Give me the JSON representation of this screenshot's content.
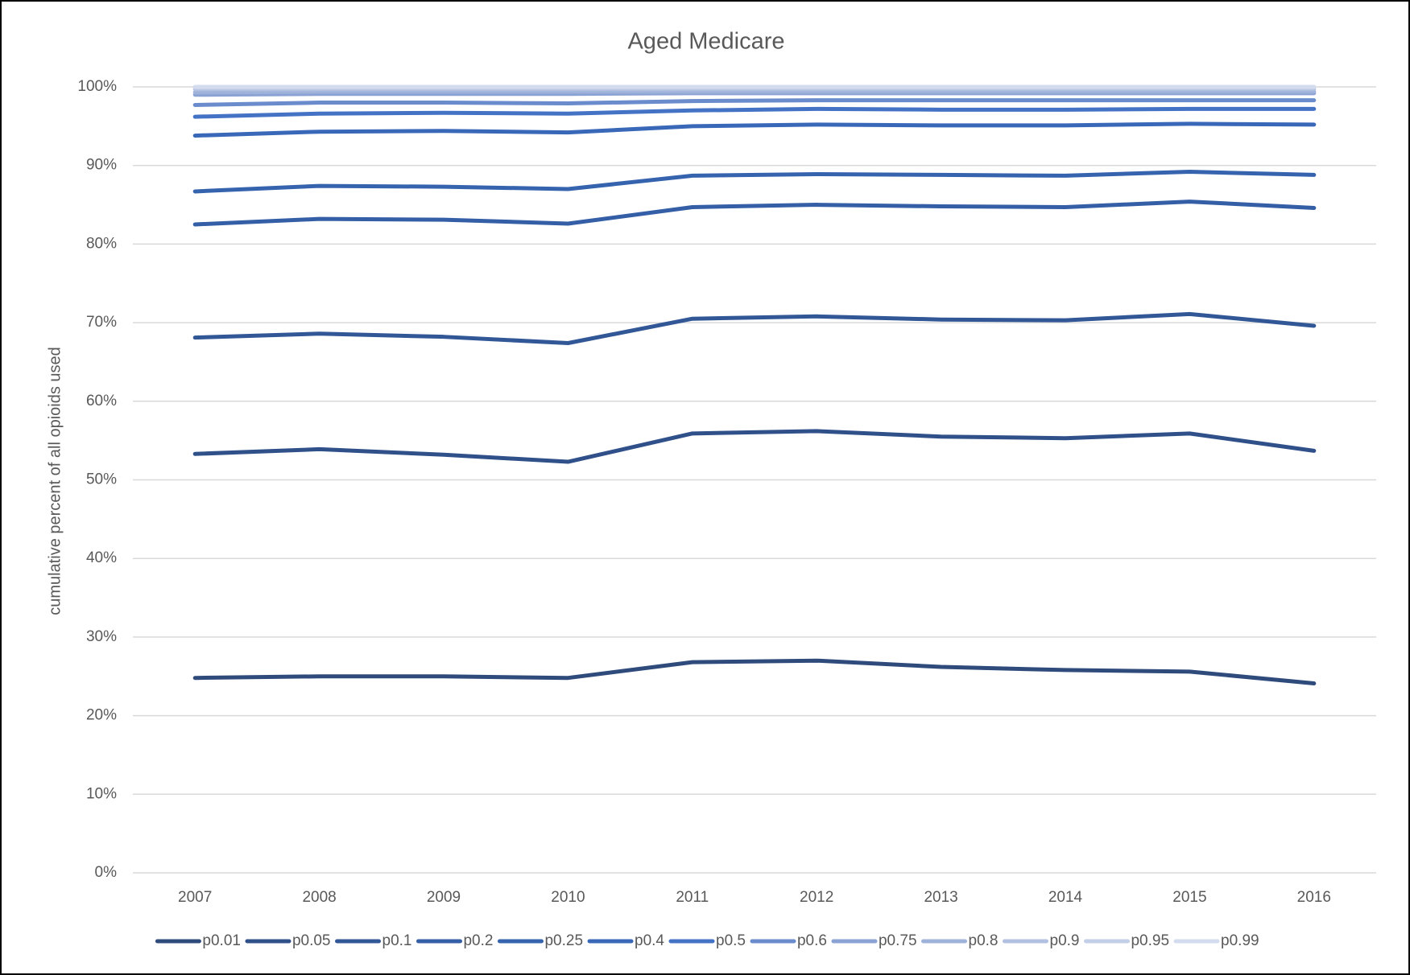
{
  "chart_data": {
    "type": "line",
    "title": "Aged Medicare",
    "y_label": "cumulative percent of all opioids used",
    "categories": [
      "2007",
      "2008",
      "2009",
      "2010",
      "2011",
      "2012",
      "2013",
      "2014",
      "2015",
      "2016"
    ],
    "ylim": [
      0,
      100
    ],
    "yticks": [
      {
        "value": 0,
        "label": "0%"
      },
      {
        "value": 10,
        "label": "10%"
      },
      {
        "value": 20,
        "label": "20%"
      },
      {
        "value": 30,
        "label": "30%"
      },
      {
        "value": 40,
        "label": "40%"
      },
      {
        "value": 50,
        "label": "50%"
      },
      {
        "value": 60,
        "label": "60%"
      },
      {
        "value": 70,
        "label": "70%"
      },
      {
        "value": 80,
        "label": "80%"
      },
      {
        "value": 90,
        "label": "90%"
      },
      {
        "value": 100,
        "label": "100%"
      }
    ],
    "grid": true,
    "legend": "bottom",
    "series": [
      {
        "name": "p0.01",
        "color": "#2f4b7c",
        "values": [
          24.8,
          25.0,
          25.0,
          24.8,
          26.8,
          27.0,
          26.2,
          25.8,
          25.6,
          24.1
        ]
      },
      {
        "name": "p0.05",
        "color": "#30508a",
        "values": [
          53.3,
          53.9,
          53.2,
          52.3,
          55.9,
          56.2,
          55.5,
          55.3,
          55.9,
          53.7
        ]
      },
      {
        "name": "p0.1",
        "color": "#325797",
        "values": [
          68.1,
          68.6,
          68.2,
          67.4,
          70.5,
          70.8,
          70.4,
          70.3,
          71.1,
          69.6
        ]
      },
      {
        "name": "p0.2",
        "color": "#345ea5",
        "values": [
          82.5,
          83.2,
          83.1,
          82.6,
          84.7,
          85.0,
          84.8,
          84.7,
          85.4,
          84.6
        ]
      },
      {
        "name": "p0.25",
        "color": "#3663ae",
        "values": [
          86.7,
          87.4,
          87.3,
          87.0,
          88.7,
          88.9,
          88.8,
          88.7,
          89.2,
          88.8
        ]
      },
      {
        "name": "p0.4",
        "color": "#3a68b8",
        "values": [
          93.8,
          94.3,
          94.4,
          94.2,
          95.0,
          95.2,
          95.1,
          95.1,
          95.3,
          95.2
        ]
      },
      {
        "name": "p0.5",
        "color": "#4472c4",
        "values": [
          96.2,
          96.6,
          96.7,
          96.6,
          97.0,
          97.2,
          97.1,
          97.1,
          97.2,
          97.2
        ]
      },
      {
        "name": "p0.6",
        "color": "#6a8bcc",
        "values": [
          97.7,
          98.0,
          98.0,
          97.9,
          98.2,
          98.3,
          98.3,
          98.3,
          98.3,
          98.3
        ]
      },
      {
        "name": "p0.75",
        "color": "#8ba2d4",
        "values": [
          99.0,
          99.1,
          99.1,
          99.1,
          99.2,
          99.2,
          99.2,
          99.2,
          99.2,
          99.2
        ]
      },
      {
        "name": "p0.8",
        "color": "#9fb2da",
        "values": [
          99.3,
          99.4,
          99.4,
          99.4,
          99.4,
          99.4,
          99.4,
          99.4,
          99.4,
          99.4
        ]
      },
      {
        "name": "p0.9",
        "color": "#b2c1e1",
        "values": [
          99.7,
          99.7,
          99.7,
          99.7,
          99.7,
          99.7,
          99.7,
          99.7,
          99.7,
          99.7
        ]
      },
      {
        "name": "p0.95",
        "color": "#c3cee7",
        "values": [
          99.9,
          99.9,
          99.9,
          99.9,
          99.9,
          99.9,
          99.9,
          99.9,
          99.9,
          99.9
        ]
      },
      {
        "name": "p0.99",
        "color": "#d3dbee",
        "values": [
          100,
          100,
          100,
          100,
          100,
          100,
          100,
          100,
          100,
          100
        ]
      }
    ]
  }
}
